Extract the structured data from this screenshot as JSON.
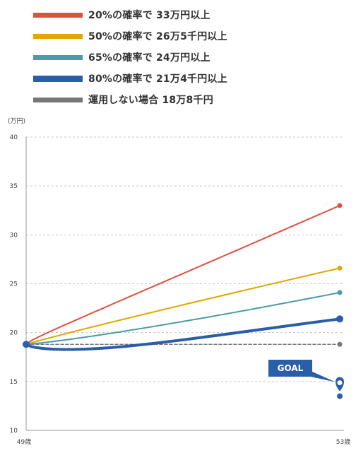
{
  "chart_data": {
    "type": "line",
    "unit_label": "(万円)",
    "y_ticks": [
      "40",
      "35",
      "30",
      "25",
      "20",
      "15",
      "10"
    ],
    "ylim": [
      10,
      40
    ],
    "x_tick_labels": [
      "49歳",
      "53歳"
    ],
    "x": [
      49,
      53
    ],
    "series": [
      {
        "name": "20%の確率で 33万円以上",
        "color": "#e05040",
        "start": 18.8,
        "end": 33.0,
        "curve": "concave-up-fast",
        "width": 2
      },
      {
        "name": "50%の確率で 26万5千円以上",
        "color": "#e0a800",
        "start": 18.8,
        "end": 26.6,
        "curve": "slightly-concave",
        "width": 2
      },
      {
        "name": "65%の確率で 24万円以上",
        "color": "#4a9aa8",
        "start": 18.8,
        "end": 24.1,
        "curve": "slightly-convex",
        "width": 2
      },
      {
        "name": "80%の確率で 21万4千円以上",
        "color": "#2a5ea8",
        "start": 18.8,
        "end": 21.4,
        "curve": "dip",
        "width": 4
      },
      {
        "name": "運用しない場合 18万8千円",
        "color": "#777777",
        "start": 18.8,
        "end": 18.8,
        "curve": "flat-dashed",
        "width": 2
      }
    ],
    "goal": {
      "label": "GOAL",
      "value": 13.5,
      "color": "#2a5ea8"
    }
  }
}
